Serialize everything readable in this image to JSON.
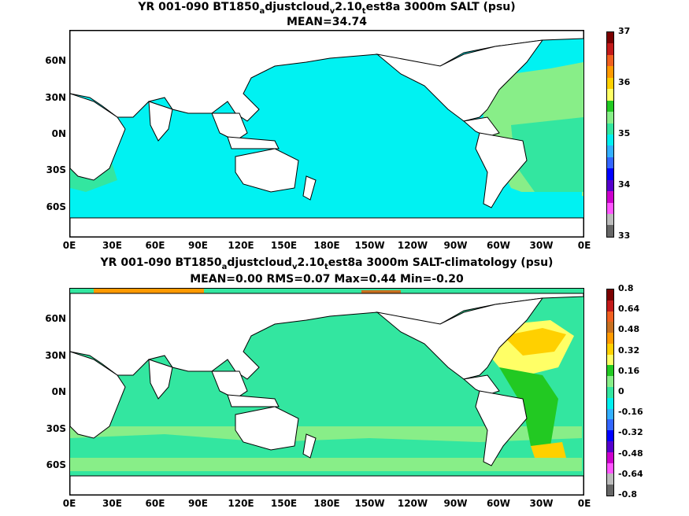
{
  "panels": [
    {
      "title_prefix": "YR 001-090 BT1850",
      "sub1": "a",
      "mid1": "djustcloud",
      "sub2": "v",
      "mid2": "2.10",
      "sub3": "t",
      "suffix": "est8a 3000m SALT (psu)",
      "stats": "MEAN=34.74",
      "lat_labels": [
        "60N",
        "30N",
        "0N",
        "30S",
        "60S"
      ],
      "lon_labels": [
        "0E",
        "30E",
        "60E",
        "90E",
        "120E",
        "150E",
        "180E",
        "150W",
        "120W",
        "90W",
        "60W",
        "30W",
        "0E"
      ],
      "colorbar": {
        "labels": [
          "37",
          "36",
          "35",
          "34",
          "33"
        ],
        "colors": [
          "#7a0000",
          "#c21a1a",
          "#f06020",
          "#ff9a00",
          "#ffd000",
          "#ffff66",
          "#22c922",
          "#88ee88",
          "#33e6a0",
          "#00f0f0",
          "#33b0ff",
          "#3366ff",
          "#0000ff",
          "#5500cc",
          "#cc00cc",
          "#ff55ff",
          "#bbbbbb",
          "#666666"
        ]
      }
    },
    {
      "title_prefix": "YR 001-090 BT1850",
      "sub1": "a",
      "mid1": "djustcloud",
      "sub2": "v",
      "mid2": "2.10",
      "sub3": "t",
      "suffix": "est8a 3000m SALT-climatology (psu)",
      "stats": "MEAN=0.00   RMS=0.07   Max=0.44   Min=-0.20",
      "lat_labels": [
        "60N",
        "30N",
        "0N",
        "30S",
        "60S"
      ],
      "lon_labels": [
        "0E",
        "30E",
        "60E",
        "90E",
        "120E",
        "150E",
        "180E",
        "150W",
        "120W",
        "90W",
        "60W",
        "30W",
        "0E"
      ],
      "colorbar": {
        "labels": [
          "0.8",
          "0.64",
          "0.48",
          "0.32",
          "0.16",
          "0",
          "-0.16",
          "-0.32",
          "-0.48",
          "-0.64",
          "-0.8"
        ],
        "colors": [
          "#7a0000",
          "#c21a1a",
          "#f06020",
          "#c87020",
          "#ff9a00",
          "#ffd000",
          "#ffff66",
          "#22c922",
          "#88ee88",
          "#33e6a0",
          "#00f0f0",
          "#33b0ff",
          "#3366ff",
          "#0000ff",
          "#5500cc",
          "#cc00cc",
          "#ff55ff",
          "#bbbbbb",
          "#666666"
        ]
      }
    }
  ]
}
